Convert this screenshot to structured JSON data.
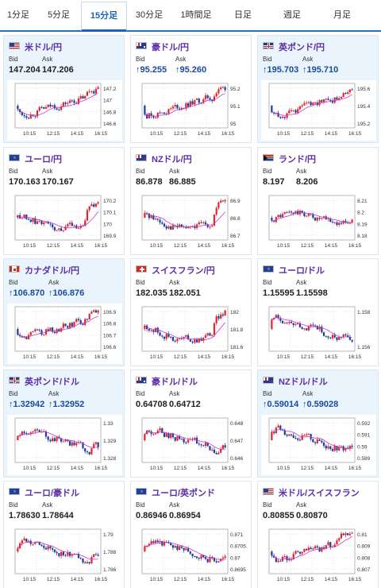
{
  "tabs": [
    "1分足",
    "5分足",
    "15分足",
    "30分足",
    "1時間足",
    "日足",
    "週足",
    "月足"
  ],
  "active_tab": "15分足",
  "labels": {
    "bid": "Bid",
    "ask": "Ask"
  },
  "x_ticks": [
    "10:15",
    "12:15",
    "14:15",
    "16:15"
  ],
  "cards": [
    {
      "pair": "米ドル/円",
      "flag": "us-flag-icon",
      "bid": "147.204",
      "ask": "147.206",
      "arrow": "",
      "highlight": true,
      "y_ticks": [
        "147.2",
        "147",
        "146.8",
        "146.6"
      ],
      "chart_data": {
        "type": "candlestick",
        "ylim": [
          146.6,
          147.25
        ],
        "trend": "up"
      }
    },
    {
      "pair": "豪ドル/円",
      "flag": "au-flag-icon",
      "bid": "95.255",
      "ask": "95.260",
      "arrow": "↑",
      "highlight": false,
      "y_ticks": [
        "95.2",
        "95.1",
        "95"
      ],
      "chart_data": {
        "type": "candlestick",
        "ylim": [
          94.98,
          95.25
        ],
        "trend": "up"
      }
    },
    {
      "pair": "英ポンド/円",
      "flag": "gb-flag-icon",
      "bid": "195.703",
      "ask": "195.710",
      "arrow": "↑",
      "highlight": true,
      "y_ticks": [
        "195.6",
        "195.4",
        "195.2"
      ],
      "chart_data": {
        "type": "candlestick",
        "ylim": [
          195.1,
          195.7
        ],
        "trend": "up"
      }
    },
    {
      "pair": "ユーロ/円",
      "flag": "eu-flag-icon",
      "bid": "170.163",
      "ask": "170.167",
      "arrow": "",
      "highlight": false,
      "y_ticks": [
        "170.2",
        "170.1",
        "170",
        "169.9"
      ],
      "chart_data": {
        "type": "candlestick",
        "ylim": [
          169.85,
          170.22
        ],
        "trend": "dip"
      }
    },
    {
      "pair": "NZドル/円",
      "flag": "nz-flag-icon",
      "bid": "86.878",
      "ask": "86.885",
      "arrow": "",
      "highlight": false,
      "y_ticks": [
        "86.9",
        "86.8",
        "86.7"
      ],
      "chart_data": {
        "type": "candlestick",
        "ylim": [
          86.68,
          86.92
        ],
        "trend": "dip"
      }
    },
    {
      "pair": "ランド/円",
      "flag": "za-flag-icon",
      "bid": "8.197",
      "ask": "8.206",
      "arrow": "",
      "highlight": false,
      "y_ticks": [
        "8.21",
        "8.2",
        "8.19",
        "8.18"
      ],
      "chart_data": {
        "type": "candlestick",
        "ylim": [
          8.178,
          8.215
        ],
        "trend": "flat"
      }
    },
    {
      "pair": "カナダドル/円",
      "flag": "ca-flag-icon",
      "bid": "106.870",
      "ask": "106.876",
      "arrow": "↑",
      "highlight": true,
      "y_ticks": [
        "106.9",
        "106.8",
        "106.7",
        "106.6"
      ],
      "chart_data": {
        "type": "candlestick",
        "ylim": [
          106.55,
          106.92
        ],
        "trend": "up"
      }
    },
    {
      "pair": "スイスフラン/円",
      "flag": "ch-flag-icon",
      "bid": "182.035",
      "ask": "182.051",
      "arrow": "",
      "highlight": false,
      "y_ticks": [
        "182",
        "181.8",
        "181.6"
      ],
      "chart_data": {
        "type": "candlestick",
        "ylim": [
          181.55,
          182.05
        ],
        "trend": "dip"
      }
    },
    {
      "pair": "ユーロ/ドル",
      "flag": "eu-flag-icon",
      "bid": "1.15595",
      "ask": "1.15598",
      "arrow": "",
      "highlight": false,
      "y_ticks": [
        "1.158",
        "1.156"
      ],
      "chart_data": {
        "type": "candlestick",
        "ylim": [
          1.1548,
          1.1585
        ],
        "trend": "down"
      }
    },
    {
      "pair": "英ポンド/ドル",
      "flag": "gb-flag-icon",
      "bid": "1.32942",
      "ask": "1.32952",
      "arrow": "↑",
      "highlight": true,
      "y_ticks": [
        "1.33",
        "1.329",
        "1.328"
      ],
      "chart_data": {
        "type": "candlestick",
        "ylim": [
          1.3272,
          1.3302
        ],
        "trend": "down"
      }
    },
    {
      "pair": "豪ドル/ドル",
      "flag": "au-flag-icon",
      "bid": "0.64708",
      "ask": "0.64712",
      "arrow": "",
      "highlight": false,
      "y_ticks": [
        "0.648",
        "0.647",
        "0.646"
      ],
      "chart_data": {
        "type": "candlestick",
        "ylim": [
          0.6453,
          0.6482
        ],
        "trend": "down"
      }
    },
    {
      "pair": "NZドル/ドル",
      "flag": "nz-flag-icon",
      "bid": "0.59014",
      "ask": "0.59028",
      "arrow": "↑",
      "highlight": true,
      "y_ticks": [
        "0.592",
        "0.591",
        "0.59",
        "0.589"
      ],
      "chart_data": {
        "type": "candlestick",
        "ylim": [
          0.5886,
          0.5922
        ],
        "trend": "down"
      }
    },
    {
      "pair": "ユーロ/豪ドル",
      "flag": "eu-flag-icon",
      "bid": "1.78630",
      "ask": "1.78644",
      "arrow": "",
      "highlight": false,
      "y_ticks": [
        "1.79",
        "1.788",
        "1.786"
      ],
      "chart_data": {
        "type": "candlestick",
        "ylim": [
          1.7855,
          1.7905
        ],
        "trend": "down"
      }
    },
    {
      "pair": "ユーロ/英ポンド",
      "flag": "eu-flag-icon",
      "bid": "0.86946",
      "ask": "0.86954",
      "arrow": "",
      "highlight": false,
      "y_ticks": [
        "0.871",
        "0.8705",
        "0.87",
        "0.8695"
      ],
      "chart_data": {
        "type": "candlestick",
        "ylim": [
          0.8693,
          0.8713
        ],
        "trend": "down"
      }
    },
    {
      "pair": "米ドル/スイスフラン",
      "flag": "us-flag-icon",
      "bid": "0.80855",
      "ask": "0.80870",
      "arrow": "",
      "highlight": false,
      "y_ticks": [
        "0.81",
        "0.809",
        "0.808",
        "0.807"
      ],
      "chart_data": {
        "type": "candlestick",
        "ylim": [
          0.8066,
          0.8102
        ],
        "trend": "up"
      }
    }
  ],
  "colors": {
    "up": "#e0252b",
    "down": "#1c3d9c",
    "ma": "#cc33cc",
    "pair": "#5b2ea6",
    "accent": "#1c63b7",
    "highlight": "#e9f4fc"
  }
}
